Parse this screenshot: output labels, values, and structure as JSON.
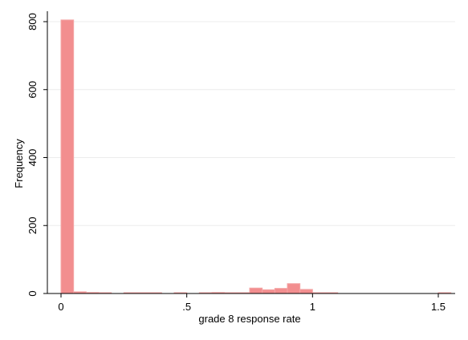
{
  "chart_data": {
    "type": "bar",
    "subtype": "histogram",
    "xlabel": "grade 8 response rate",
    "ylabel": "Frequency",
    "xlim": [
      -0.05,
      1.58
    ],
    "ylim": [
      0,
      830
    ],
    "x_ticks": [
      0,
      0.5,
      1,
      1.5
    ],
    "x_tick_labels": [
      "0",
      ".5",
      "1",
      "1.5"
    ],
    "y_ticks": [
      0,
      200,
      400,
      600,
      800
    ],
    "y_tick_labels": [
      "0",
      "200",
      "400",
      "600",
      "800"
    ],
    "grid": true,
    "bin_width": 0.05,
    "bins": [
      {
        "x0": 0.0,
        "x1": 0.05,
        "value": 805
      },
      {
        "x0": 0.05,
        "x1": 0.1,
        "value": 5
      },
      {
        "x0": 0.1,
        "x1": 0.15,
        "value": 3
      },
      {
        "x0": 0.15,
        "x1": 0.2,
        "value": 2
      },
      {
        "x0": 0.2,
        "x1": 0.25,
        "value": 0
      },
      {
        "x0": 0.25,
        "x1": 0.3,
        "value": 1
      },
      {
        "x0": 0.3,
        "x1": 0.35,
        "value": 1
      },
      {
        "x0": 0.35,
        "x1": 0.4,
        "value": 1
      },
      {
        "x0": 0.4,
        "x1": 0.45,
        "value": 0
      },
      {
        "x0": 0.45,
        "x1": 0.5,
        "value": 1
      },
      {
        "x0": 0.5,
        "x1": 0.55,
        "value": 0
      },
      {
        "x0": 0.55,
        "x1": 0.6,
        "value": 2
      },
      {
        "x0": 0.6,
        "x1": 0.65,
        "value": 3
      },
      {
        "x0": 0.65,
        "x1": 0.7,
        "value": 1
      },
      {
        "x0": 0.7,
        "x1": 0.75,
        "value": 1
      },
      {
        "x0": 0.75,
        "x1": 0.8,
        "value": 16
      },
      {
        "x0": 0.8,
        "x1": 0.85,
        "value": 11
      },
      {
        "x0": 0.85,
        "x1": 0.9,
        "value": 15
      },
      {
        "x0": 0.9,
        "x1": 0.95,
        "value": 29
      },
      {
        "x0": 0.95,
        "x1": 1.0,
        "value": 12
      },
      {
        "x0": 1.0,
        "x1": 1.05,
        "value": 2
      },
      {
        "x0": 1.05,
        "x1": 1.1,
        "value": 2
      },
      {
        "x0": 1.1,
        "x1": 1.15,
        "value": 0
      },
      {
        "x0": 1.15,
        "x1": 1.2,
        "value": 0
      },
      {
        "x0": 1.2,
        "x1": 1.25,
        "value": 0
      },
      {
        "x0": 1.25,
        "x1": 1.3,
        "value": 0
      },
      {
        "x0": 1.3,
        "x1": 1.35,
        "value": 0
      },
      {
        "x0": 1.35,
        "x1": 1.4,
        "value": 0
      },
      {
        "x0": 1.4,
        "x1": 1.45,
        "value": 0
      },
      {
        "x0": 1.45,
        "x1": 1.5,
        "value": 0
      },
      {
        "x0": 1.5,
        "x1": 1.55,
        "value": 1
      }
    ],
    "colors": {
      "bar_fill": "#f28e8f",
      "bar_stroke": "#f4a6a6",
      "axis": "#000000",
      "grid": "#ececec"
    }
  }
}
